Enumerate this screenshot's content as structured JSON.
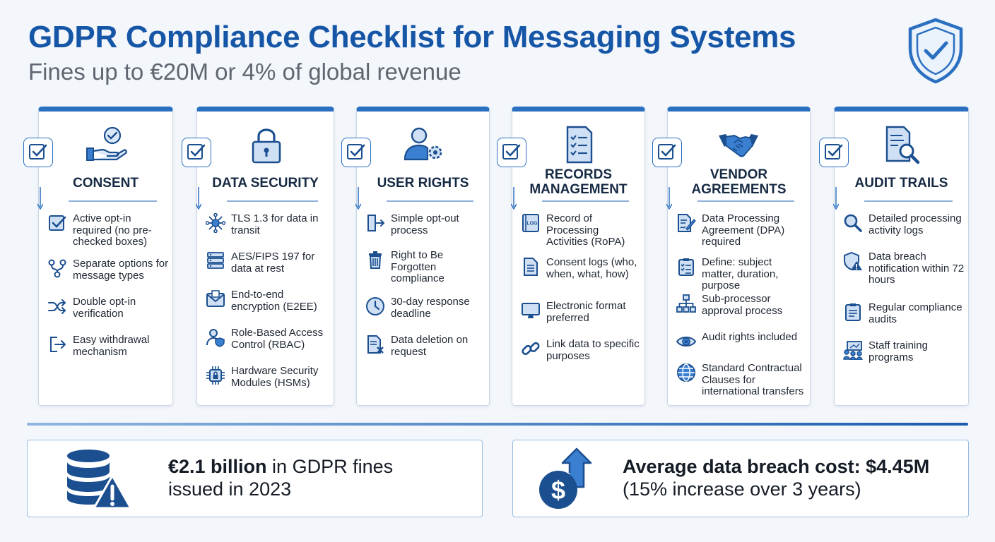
{
  "header": {
    "title": "GDPR Compliance Checklist for Messaging Systems",
    "subtitle": "Fines up to €20M or 4% of global revenue"
  },
  "colors": {
    "accent": "#2a6fc0",
    "title": "#1656a6",
    "border": "#c9d6e6"
  },
  "cards": [
    {
      "title": "CONSENT",
      "icon": "hand-check-icon",
      "items": [
        {
          "icon": "checkbox-icon",
          "text": "Active opt-in required (no pre-checked boxes)"
        },
        {
          "icon": "branch-icon",
          "text": "Separate options for message types"
        },
        {
          "icon": "shuffle-icon",
          "text": "Double opt-in verification"
        },
        {
          "icon": "exit-icon",
          "text": "Easy withdrawal mechanism"
        }
      ]
    },
    {
      "title": "DATA SECURITY",
      "icon": "padlock-icon",
      "items": [
        {
          "icon": "network-icon",
          "text": "TLS 1.3 for data in transit"
        },
        {
          "icon": "server-icon",
          "text": "AES/FIPS 197 for data at rest"
        },
        {
          "icon": "envelope-icon",
          "text": "End-to-end encryption (E2EE)"
        },
        {
          "icon": "user-shield-icon",
          "text": "Role-Based Access Control (RBAC)"
        },
        {
          "icon": "chip-lock-icon",
          "text": "Hardware Security Modules (HSMs)"
        }
      ]
    },
    {
      "title": "USER RIGHTS",
      "icon": "user-gear-icon",
      "items": [
        {
          "icon": "door-exit-icon",
          "text": "Simple opt-out process"
        },
        {
          "icon": "trash-icon",
          "text": "Right to Be Forgotten compliance"
        },
        {
          "icon": "clock-icon",
          "text": "30-day response deadline"
        },
        {
          "icon": "doc-delete-icon",
          "text": "Data deletion on request"
        }
      ]
    },
    {
      "title": "RECORDS MANAGEMENT",
      "icon": "clipboard-list-icon",
      "items": [
        {
          "icon": "log-book-icon",
          "text": "Record of Processing Activities (RoPA)",
          "logo": "LOG"
        },
        {
          "icon": "document-icon",
          "text": "Consent logs (who, when, what, how)"
        },
        {
          "icon": "monitor-icon",
          "text": "Electronic format preferred"
        },
        {
          "icon": "link-icon",
          "text": "Link data to specific purposes"
        }
      ]
    },
    {
      "title": "VENDOR AGREEMENTS",
      "icon": "handshake-icon",
      "items": [
        {
          "icon": "contract-sign-icon",
          "text": "Data Processing Agreement (DPA) required"
        },
        {
          "icon": "checklist-icon",
          "text": "Define: subject matter, duration, purpose"
        },
        {
          "icon": "org-chart-icon",
          "text": "Sub-processor approval process"
        },
        {
          "icon": "eye-icon",
          "text": "Audit rights included"
        },
        {
          "icon": "globe-icon",
          "text": "Standard Contractual Clauses for international transfers"
        }
      ]
    },
    {
      "title": "AUDIT TRAILS",
      "icon": "doc-search-icon",
      "items": [
        {
          "icon": "magnifier-icon",
          "text": "Detailed processing activity logs"
        },
        {
          "icon": "shield-alert-icon",
          "text": "Data breach notification within 72 hours"
        },
        {
          "icon": "clipboard-icon",
          "text": "Regular compliance audits"
        },
        {
          "icon": "training-icon",
          "text": "Staff training programs"
        }
      ]
    }
  ],
  "stats": [
    {
      "icon": "database-warning-icon",
      "bold": "€2.1 billion",
      "rest": " in GDPR fines",
      "line2": "issued in 2023"
    },
    {
      "icon": "dollar-up-icon",
      "bold": "Average data breach cost: $4.45M",
      "rest": "",
      "line2": "(15% increase over 3 years)"
    }
  ]
}
